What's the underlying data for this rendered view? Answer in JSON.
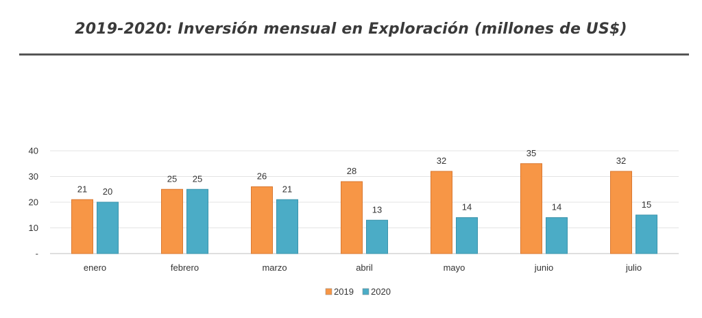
{
  "title": "2019-2020: Inversión mensual en Exploración (millones de US$)",
  "chart_data": {
    "type": "bar",
    "title": "2019-2020: Inversión mensual en Exploración (millones de US$)",
    "xlabel": "",
    "ylabel": "",
    "categories": [
      "enero",
      "febrero",
      "marzo",
      "abril",
      "mayo",
      "junio",
      "julio"
    ],
    "series": [
      {
        "name": "2019",
        "color": "#F79646",
        "values": [
          21,
          25,
          26,
          28,
          32,
          35,
          32
        ],
        "labels": [
          "21",
          "25",
          "26",
          "28",
          "32",
          "35",
          "32"
        ]
      },
      {
        "name": "2020",
        "color": "#4BACC6",
        "values": [
          20,
          25,
          21,
          13,
          14,
          14,
          15
        ],
        "labels": [
          "20",
          "25",
          "21",
          "13",
          "14",
          "14",
          "15"
        ]
      }
    ],
    "ylim": [
      0,
      40
    ],
    "yticks": [
      0,
      10,
      20,
      30,
      40
    ],
    "ytick_labels": [
      "-",
      "10",
      "20",
      "30",
      "40"
    ],
    "grid": true,
    "legend": "bottom-center"
  }
}
